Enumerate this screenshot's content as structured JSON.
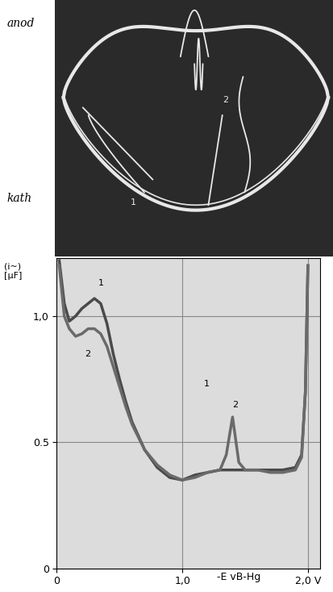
{
  "oscillogram": {
    "anode_label": "anod",
    "cathode_label": "kath",
    "curve_labels": [
      "1",
      "2"
    ]
  },
  "chart_data": {
    "type": "line",
    "y_label": "(i~)\n[μF]",
    "x_label": "-E vB-Hg",
    "xlim": [
      0,
      2.1
    ],
    "xticks": [
      0,
      {
        "value": 1.0,
        "label": "1,0"
      },
      {
        "value": 2.0,
        "label": "2,0 V"
      }
    ],
    "ylim": [
      0,
      1.23
    ],
    "yticks": [
      0,
      0.5,
      {
        "value": 1.0,
        "label": "1,0"
      }
    ],
    "grid": true,
    "series": [
      {
        "name": "1",
        "color": "#4a4a4a",
        "x": [
          0.02,
          0.06,
          0.1,
          0.15,
          0.2,
          0.25,
          0.3,
          0.35,
          0.4,
          0.45,
          0.5,
          0.55,
          0.6,
          0.7,
          0.8,
          0.9,
          1.0,
          1.1,
          1.2,
          1.3,
          1.4,
          1.5,
          1.6,
          1.7,
          1.8,
          1.9,
          1.95,
          1.98,
          2.0
        ],
        "values": [
          1.22,
          1.05,
          0.98,
          1.0,
          1.03,
          1.05,
          1.07,
          1.05,
          0.97,
          0.85,
          0.75,
          0.66,
          0.58,
          0.47,
          0.4,
          0.36,
          0.35,
          0.37,
          0.38,
          0.39,
          0.39,
          0.39,
          0.39,
          0.39,
          0.39,
          0.4,
          0.45,
          0.7,
          1.2
        ]
      },
      {
        "name": "2",
        "color": "#6a6a6a",
        "x": [
          0.02,
          0.06,
          0.1,
          0.15,
          0.2,
          0.25,
          0.3,
          0.35,
          0.4,
          0.45,
          0.5,
          0.55,
          0.6,
          0.7,
          0.8,
          0.9,
          1.0,
          1.1,
          1.2,
          1.3,
          1.35,
          1.4,
          1.45,
          1.5,
          1.6,
          1.7,
          1.8,
          1.9,
          1.95,
          1.98,
          2.0
        ],
        "values": [
          1.2,
          1.0,
          0.95,
          0.92,
          0.93,
          0.95,
          0.95,
          0.93,
          0.88,
          0.8,
          0.72,
          0.64,
          0.57,
          0.47,
          0.41,
          0.37,
          0.35,
          0.36,
          0.38,
          0.39,
          0.45,
          0.6,
          0.42,
          0.39,
          0.39,
          0.38,
          0.38,
          0.39,
          0.44,
          0.7,
          1.2
        ]
      }
    ],
    "annotations": [
      {
        "text": "1",
        "x": 0.33,
        "y": 1.12
      },
      {
        "text": "2",
        "x": 0.22,
        "y": 0.84
      },
      {
        "text": "1",
        "x": 1.17,
        "y": 0.72
      },
      {
        "text": "2",
        "x": 1.4,
        "y": 0.64
      }
    ]
  }
}
